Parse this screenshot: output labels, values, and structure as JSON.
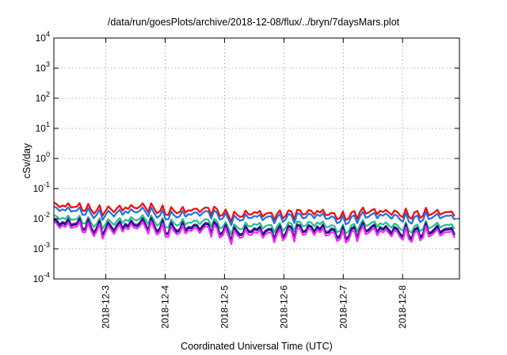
{
  "chart_data": {
    "type": "line",
    "title": "/data/run/goesPlots/archive/2018-12-08/flux/../bryn/7daysMars.plot",
    "xlabel": "Coordinated Universal Time (UTC)",
    "ylabel": "cSv/day",
    "yscale": "log",
    "ylim": [
      0.0001,
      10000
    ],
    "y_ticks": [
      {
        "mant": "10",
        "exp": "-4",
        "value": 0.0001
      },
      {
        "mant": "10",
        "exp": "-3",
        "value": 0.001
      },
      {
        "mant": "10",
        "exp": "-2",
        "value": 0.01
      },
      {
        "mant": "10",
        "exp": "-1",
        "value": 0.1
      },
      {
        "mant": "10",
        "exp": "0",
        "value": 1
      },
      {
        "mant": "10",
        "exp": "1",
        "value": 10
      },
      {
        "mant": "10",
        "exp": "2",
        "value": 100
      },
      {
        "mant": "10",
        "exp": "3",
        "value": 1000
      },
      {
        "mant": "10",
        "exp": "4",
        "value": 10000
      }
    ],
    "xlim": [
      "2018-12-02T03:00",
      "2018-12-08T23:00"
    ],
    "x_ticks": [
      "2018-12-3",
      "2018-12-4",
      "2018-12-5",
      "2018-12-6",
      "2018-12-7",
      "2018-12-8"
    ],
    "grid": true,
    "x": [
      "2018-12-02T03:00",
      "2018-12-02T12:00",
      "2018-12-02T21:00",
      "2018-12-03T06:00",
      "2018-12-03T15:00",
      "2018-12-04T00:00",
      "2018-12-04T09:00",
      "2018-12-04T18:00",
      "2018-12-05T03:00",
      "2018-12-05T12:00",
      "2018-12-05T21:00",
      "2018-12-06T06:00",
      "2018-12-06T15:00",
      "2018-12-07T00:00",
      "2018-12-07T09:00",
      "2018-12-07T18:00",
      "2018-12-08T03:00",
      "2018-12-08T12:00",
      "2018-12-08T21:00"
    ],
    "series": [
      {
        "color": "#ff0000",
        "values": [
          0.028,
          0.026,
          0.018,
          0.022,
          0.026,
          0.017,
          0.019,
          0.021,
          0.012,
          0.016,
          0.013,
          0.016,
          0.017,
          0.011,
          0.018,
          0.017,
          0.013,
          0.016,
          0.016
        ]
      },
      {
        "color": "#1e6fe8",
        "values": [
          0.021,
          0.019,
          0.013,
          0.016,
          0.019,
          0.012,
          0.014,
          0.016,
          0.009,
          0.012,
          0.01,
          0.012,
          0.013,
          0.008,
          0.013,
          0.013,
          0.009,
          0.012,
          0.012
        ]
      },
      {
        "color": "#20c090",
        "values": [
          0.011,
          0.01,
          0.0065,
          0.0085,
          0.0105,
          0.0065,
          0.0075,
          0.0085,
          0.0045,
          0.0065,
          0.005,
          0.0065,
          0.007,
          0.004,
          0.007,
          0.0065,
          0.0045,
          0.006,
          0.006
        ]
      },
      {
        "color": "#6a2a8a",
        "values": [
          0.008,
          0.0075,
          0.0048,
          0.0062,
          0.0078,
          0.0047,
          0.0054,
          0.0062,
          0.0033,
          0.0047,
          0.0036,
          0.0048,
          0.0051,
          0.003,
          0.0052,
          0.0048,
          0.0033,
          0.0045,
          0.0045
        ]
      },
      {
        "color": "#001b80",
        "values": [
          0.0072,
          0.0068,
          0.0043,
          0.0056,
          0.0071,
          0.0043,
          0.0049,
          0.0057,
          0.003,
          0.0043,
          0.0033,
          0.0044,
          0.0047,
          0.0027,
          0.0048,
          0.0044,
          0.003,
          0.0041,
          0.0041
        ]
      },
      {
        "color": "#ff22ff",
        "values": [
          0.006,
          0.0057,
          0.0036,
          0.0047,
          0.0059,
          0.0035,
          0.0041,
          0.0047,
          0.0025,
          0.0035,
          0.0027,
          0.0036,
          0.0039,
          0.0022,
          0.004,
          0.0036,
          0.0025,
          0.0034,
          0.0034
        ]
      }
    ]
  }
}
